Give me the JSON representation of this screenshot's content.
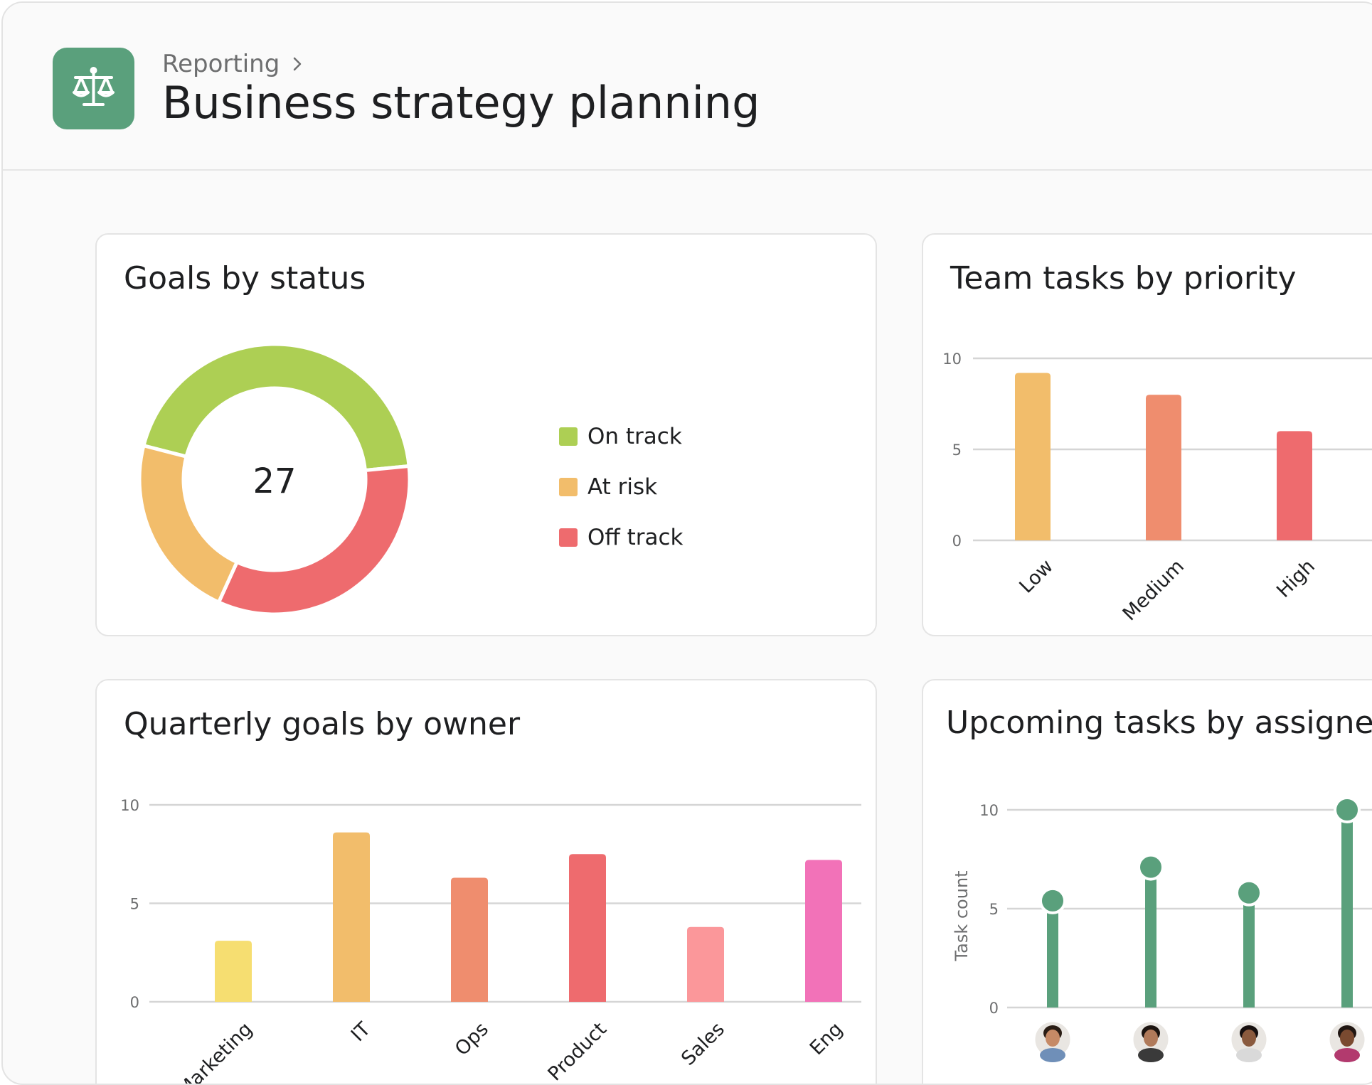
{
  "header": {
    "breadcrumb": "Reporting",
    "title": "Business strategy planning",
    "app_icon": "scales-icon",
    "chevron_icon": "chevron-right-icon"
  },
  "colors": {
    "brand_green": "#5aa07c",
    "on_track": "#adcf54",
    "at_risk": "#f2bd6b",
    "off_track": "#ee6b6e",
    "orange": "#ef8d6e",
    "pink_light": "#fb979a",
    "pink": "#f272b8",
    "yellow": "#f6de71"
  },
  "cards": {
    "goals": {
      "title": "Goals by status",
      "center_value": "27"
    },
    "team": {
      "title": "Team tasks by priority"
    },
    "quarterly": {
      "title": "Quarterly goals by owner"
    },
    "upcoming": {
      "title": "Upcoming tasks by assignee",
      "ylabel": "Task count"
    }
  },
  "chart_data": [
    {
      "type": "pie",
      "title": "Goals by status",
      "center_label": "27",
      "legend_position": "right",
      "slices": [
        {
          "label": "On track",
          "value": 12,
          "color": "#adcf54"
        },
        {
          "label": "Off track",
          "value": 9,
          "color": "#ee6b6e"
        },
        {
          "label": "At risk",
          "value": 6,
          "color": "#f2bd6b"
        }
      ]
    },
    {
      "type": "bar",
      "title": "Team tasks by priority",
      "categories": [
        "Low",
        "Medium",
        "High"
      ],
      "values": [
        9.2,
        8,
        6
      ],
      "colors": [
        "#f2bd6b",
        "#ef8d6e",
        "#ee6b6e"
      ],
      "yticks": [
        "0",
        "5",
        "10"
      ],
      "ylim": [
        0,
        10
      ],
      "grid": true
    },
    {
      "type": "bar",
      "title": "Quarterly goals by owner",
      "categories": [
        "Marketing",
        "IT",
        "Ops",
        "Product",
        "Sales",
        "Eng"
      ],
      "values": [
        3.1,
        8.6,
        6.3,
        7.5,
        3.8,
        7.2
      ],
      "colors": [
        "#f6de71",
        "#f2bd6b",
        "#ef8d6e",
        "#ee6b6e",
        "#fb979a",
        "#f272b8"
      ],
      "yticks": [
        "0",
        "5",
        "10"
      ],
      "ylim": [
        0,
        10
      ],
      "grid": true
    },
    {
      "type": "scatter",
      "style": "lollipop",
      "title": "Upcoming tasks by assignee",
      "ylabel": "Task count",
      "categories": [
        "assignee-1",
        "assignee-2",
        "assignee-3",
        "assignee-4"
      ],
      "values": [
        5.4,
        7.1,
        5.8,
        10
      ],
      "color": "#5aa07c",
      "yticks": [
        "0",
        "5",
        "10"
      ],
      "ylim": [
        0,
        10
      ],
      "grid": true
    }
  ]
}
